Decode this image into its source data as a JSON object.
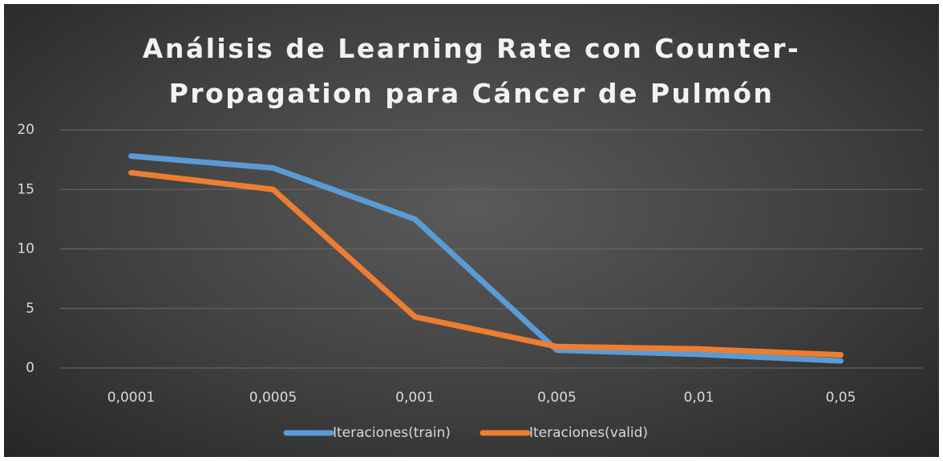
{
  "chart_data": {
    "type": "line",
    "title": "Análisis de Learning Rate con Counter-Propagation para Cáncer de Pulmón",
    "categories": [
      "0,0001",
      "0,0005",
      "0,001",
      "0,005",
      "0,01",
      "0,05"
    ],
    "series": [
      {
        "name": "Iteraciones(train)",
        "color": "#5b9bd5",
        "values": [
          17.8,
          16.8,
          12.5,
          1.5,
          1.15,
          0.6
        ]
      },
      {
        "name": "Iteraciones(valid)",
        "color": "#ed7d31",
        "values": [
          16.4,
          15.0,
          4.3,
          1.8,
          1.6,
          1.1
        ]
      }
    ],
    "ylim": [
      0,
      20
    ],
    "yticks": [
      0,
      5,
      10,
      15,
      20
    ],
    "grid": true,
    "legend": "bottom"
  }
}
